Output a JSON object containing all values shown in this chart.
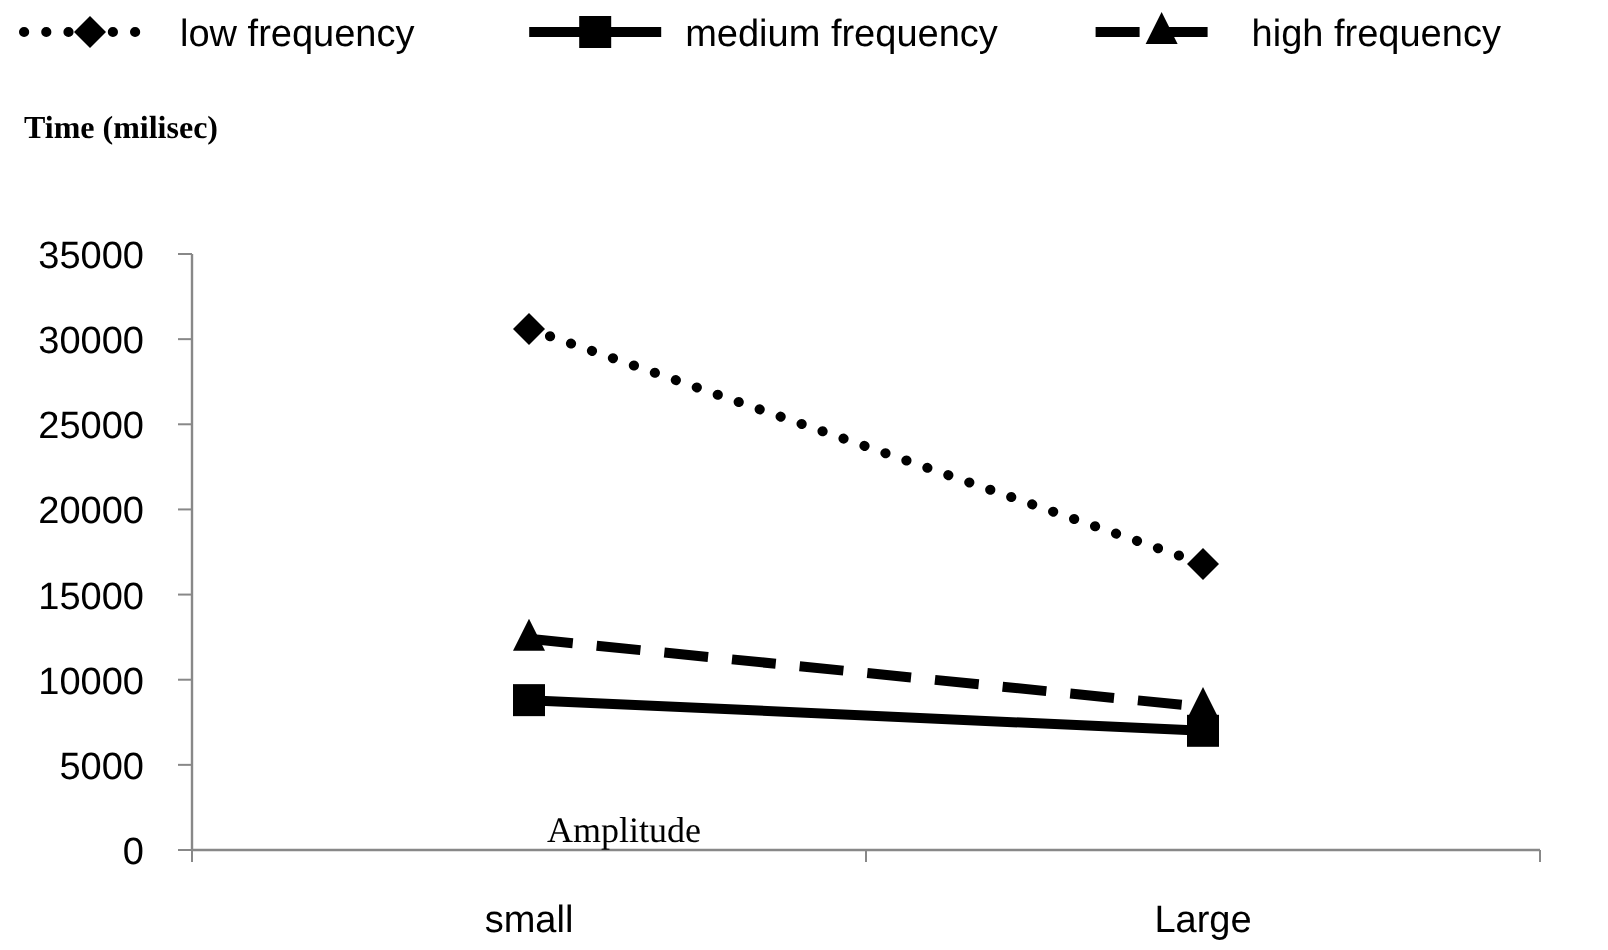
{
  "chart_data": {
    "type": "line",
    "ylabel": "Time (milisec)",
    "xlabel": "Amplitude",
    "categories": [
      "small",
      "Large"
    ],
    "series": [
      {
        "name": "low frequency",
        "color": "#000000",
        "values": [
          30600,
          16800
        ],
        "marker": "diamond",
        "line_style": "dotted"
      },
      {
        "name": "medium frequency",
        "color": "#000000",
        "values": [
          8800,
          7000
        ],
        "marker": "square",
        "line_style": "solid"
      },
      {
        "name": "high frequency",
        "color": "#000000",
        "values": [
          12400,
          8400
        ],
        "marker": "triangle",
        "line_style": "dashed"
      }
    ],
    "ylim": [
      0,
      35000
    ],
    "yticks": [
      0,
      5000,
      10000,
      15000,
      20000,
      25000,
      30000,
      35000
    ],
    "grid": false,
    "legend": "top"
  }
}
